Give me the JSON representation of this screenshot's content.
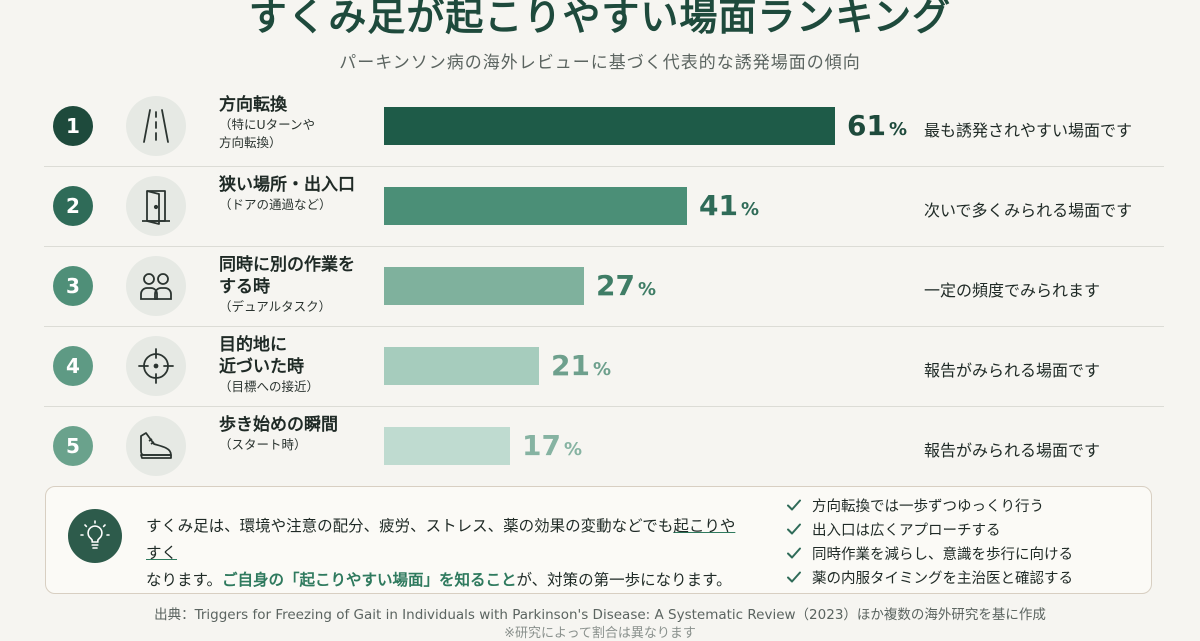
{
  "header": {
    "title": "すくみ足が起こりやすい場面ランキング",
    "subtitle": "パーキンソン病の海外レビューに基づく代表的な誘発場面の傾向"
  },
  "chart_data": {
    "type": "bar",
    "orientation": "horizontal",
    "title": "すくみ足が起こりやすい場面ランキング",
    "subtitle": "パーキンソン病の海外レビューに基づく代表的な誘発場面の傾向",
    "unit": "%",
    "xlim": [
      0,
      100
    ],
    "grid": false,
    "legend": "none",
    "categories": [
      "方向転換",
      "狭い場所・出入口",
      "同時に別の作業をする時",
      "目的地に近づいた時",
      "歩き始めの瞬間"
    ],
    "values": [
      61,
      41,
      27,
      21,
      17
    ],
    "rows": [
      {
        "rank": "1",
        "title": "方向転換",
        "sub": [
          "（特にUターンや",
          "方向転換）"
        ],
        "value": 61,
        "value_text": "61",
        "desc": "最も誘発されやすい場面です",
        "icon": "road-icon",
        "bar_color": "#1e5b48",
        "badge_color": "#1e4a3c",
        "text_color": "#1e4a3c"
      },
      {
        "rank": "2",
        "title": "狭い場所・出入口",
        "sub": [
          "（ドアの通過など）"
        ],
        "value": 41,
        "value_text": "41",
        "desc": "次いで多くみられる場面です",
        "icon": "door-icon",
        "bar_color": "#4b8f77",
        "badge_color": "#2f6b58",
        "text_color": "#2f6b58"
      },
      {
        "rank": "3",
        "title": "同時に別の作業を",
        "title2": "する時",
        "sub": [
          "（デュアルタスク）"
        ],
        "value": 27,
        "value_text": "27",
        "desc": "一定の頻度でみられます",
        "icon": "people-icon",
        "bar_color": "#7fb19d",
        "badge_color": "#4f8f78",
        "text_color": "#3f7d66"
      },
      {
        "rank": "4",
        "title": "目的地に",
        "title2": "近づいた時",
        "sub": [
          "（目標への接近）"
        ],
        "value": 21,
        "value_text": "21",
        "desc": "報告がみられる場面です",
        "icon": "target-icon",
        "bar_color": "#a6ccbd",
        "badge_color": "#5e9a84",
        "text_color": "#6ea08d"
      },
      {
        "rank": "5",
        "title": "歩き始めの瞬間",
        "sub": [
          "（スタート時）"
        ],
        "value": 17,
        "value_text": "17",
        "desc": "報告がみられる場面です",
        "icon": "shoe-icon",
        "bar_color": "#bfdbd0",
        "badge_color": "#6aa28c",
        "text_color": "#86b3a2"
      }
    ]
  },
  "note": {
    "icon": "lightbulb-icon",
    "line1_a": "すくみ足は、環境や注意の配分、疲労、ストレス、薬の効果の変動などでも",
    "line1_b": "起こりやすく",
    "line2_a": "なります。",
    "line2_b": "ご自身の「起こりやすい場面」を知ること",
    "line2_c": "が、対策の第一歩になります。",
    "tips": [
      "方向転換では一歩ずつゆっくり行う",
      "出入口は広くアプローチする",
      "同時作業を減らし、意識を歩行に向ける",
      "薬の内服タイミングを主治医と確認する"
    ],
    "check_icon": "check-icon"
  },
  "footer": {
    "source": "出典：Triggers for Freezing of Gait in Individuals with Parkinson's Disease: A Systematic Review（2023）ほか複数の海外研究を基に作成",
    "footnote": "※研究によって割合は異なります"
  },
  "colors": {
    "accent": "#1e4a3c",
    "highlight": "#2f7a5e",
    "background": "#f6f5f1"
  }
}
